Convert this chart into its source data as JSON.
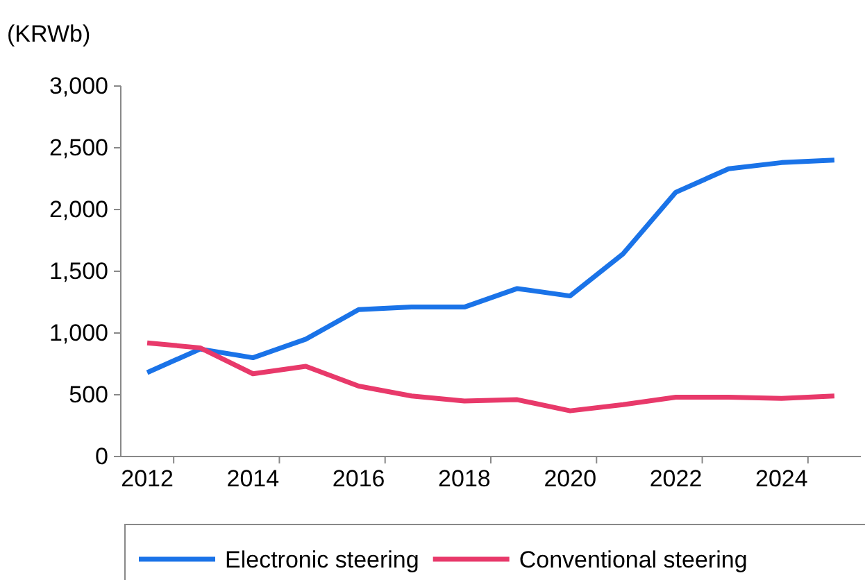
{
  "chart_data": {
    "type": "line",
    "ylabel": "(KRWb)",
    "categories": [
      "2012",
      null,
      "2014",
      null,
      "2016",
      null,
      "2018",
      null,
      "2020",
      null,
      "2022",
      null,
      "2024",
      null
    ],
    "series": [
      {
        "name": "Electronic steering",
        "color": "#1a73e8",
        "values": [
          680,
          870,
          800,
          950,
          1190,
          1210,
          1210,
          1360,
          1300,
          1640,
          2140,
          2330,
          2380,
          2400
        ]
      },
      {
        "name": "Conventional steering",
        "color": "#e8396a",
        "values": [
          920,
          880,
          670,
          730,
          570,
          490,
          450,
          460,
          370,
          420,
          480,
          480,
          470,
          490
        ]
      }
    ],
    "ylim": [
      0,
      3000
    ],
    "yticks": [
      {
        "value": 0,
        "label": "0"
      },
      {
        "value": 500,
        "label": "500"
      },
      {
        "value": 1000,
        "label": "1,000"
      },
      {
        "value": 1500,
        "label": "1,500"
      },
      {
        "value": 2000,
        "label": "2,000"
      },
      {
        "value": 2500,
        "label": "2,500"
      },
      {
        "value": 3000,
        "label": "3,000"
      }
    ],
    "grid": false,
    "legend": "bottom",
    "marker": "none",
    "line_style": "solid"
  }
}
